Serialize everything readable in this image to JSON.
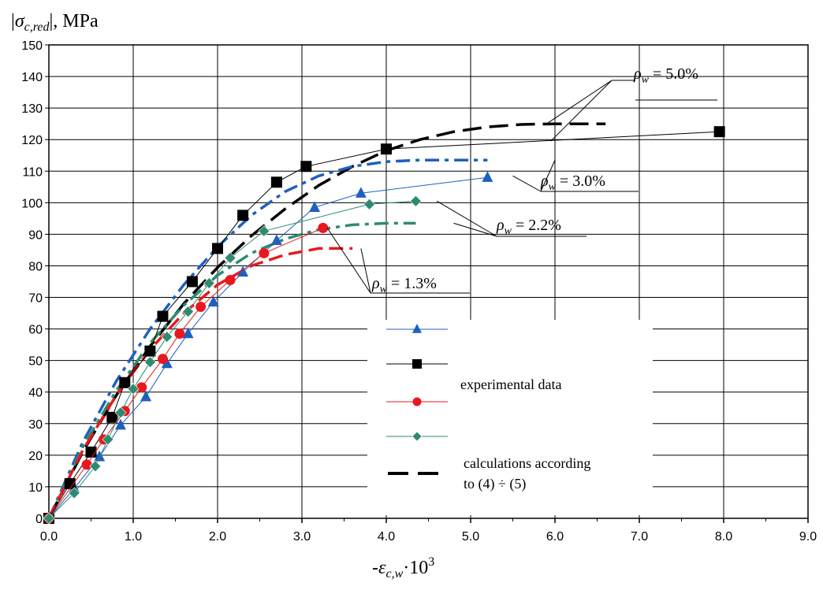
{
  "chart_data": {
    "type": "line",
    "ylabel_parts": [
      "|",
      "σ",
      "c,red",
      "|, MPa"
    ],
    "xlabel_parts": [
      "-",
      "ε",
      "c,w",
      "·10",
      "3"
    ],
    "xlim": [
      0,
      9
    ],
    "ylim": [
      0,
      150
    ],
    "x_ticks": [
      "0.0",
      "1.0",
      "2.0",
      "3.0",
      "4.0",
      "5.0",
      "6.0",
      "7.0",
      "8.0",
      "9.0"
    ],
    "y_ticks": [
      "0",
      "10",
      "20",
      "30",
      "40",
      "50",
      "60",
      "70",
      "80",
      "90",
      "100",
      "110",
      "120",
      "130",
      "140",
      "150"
    ],
    "grid": true,
    "colors": {
      "blue": "#1F5FBF",
      "black": "#000000",
      "red": "#E8191E",
      "green": "#2E8B6E"
    },
    "legend": {
      "experimental_label": "experimental data",
      "calc_label_line1": "calculations according",
      "calc_label_line2": "to (4) ÷ (5)"
    },
    "annotations": [
      {
        "rho": "ρ",
        "sub": "w",
        "text": " = 5.0%"
      },
      {
        "rho": "ρ",
        "sub": "w",
        "text": " = 3.0%"
      },
      {
        "rho": "ρ",
        "sub": "w",
        "text": " = 2.2%"
      },
      {
        "rho": "ρ",
        "sub": "w",
        "text": " = 1.3%"
      }
    ],
    "series": [
      {
        "color": "blue",
        "marker": "triangle",
        "x": [
          0,
          0.3,
          0.6,
          0.85,
          1.15,
          1.4,
          1.65,
          1.95,
          2.3,
          2.7,
          3.15,
          3.7,
          5.2
        ],
        "y": [
          0,
          9.5,
          19.5,
          29.5,
          38.5,
          49,
          58.5,
          68.5,
          78,
          88,
          98.5,
          103,
          108
        ]
      },
      {
        "color": "black",
        "marker": "square",
        "x": [
          0,
          0.25,
          0.5,
          0.75,
          0.9,
          1.2,
          1.35,
          1.7,
          2.0,
          2.3,
          2.7,
          3.05,
          4.0,
          7.95
        ],
        "y": [
          0,
          11,
          21,
          32,
          43,
          53,
          64,
          75,
          85.5,
          96,
          106.5,
          111.5,
          117,
          122.5
        ]
      },
      {
        "color": "red",
        "marker": "circle",
        "x": [
          0,
          0.45,
          0.65,
          0.9,
          1.1,
          1.35,
          1.55,
          1.8,
          2.15,
          2.55,
          3.25
        ],
        "y": [
          0,
          17,
          25,
          34,
          41.5,
          50.5,
          58.5,
          67,
          75.5,
          84,
          92
        ]
      },
      {
        "color": "green",
        "marker": "diamond",
        "x": [
          0,
          0.3,
          0.55,
          0.7,
          0.85,
          1.0,
          1.2,
          1.4,
          1.65,
          1.9,
          2.15,
          2.55,
          3.8,
          4.35
        ],
        "y": [
          0,
          8,
          16.5,
          25,
          33.5,
          41,
          49.5,
          57.5,
          65.5,
          74.5,
          82.5,
          91,
          99.5,
          100.5
        ]
      }
    ],
    "calculations": [
      {
        "color": "black",
        "x": [
          0,
          0.4,
          0.8,
          1.2,
          1.6,
          2.0,
          2.4,
          2.8,
          3.2,
          3.6,
          4.0,
          4.4,
          4.8,
          5.2,
          5.6,
          6.0,
          6.6
        ],
        "y": [
          0,
          21,
          39,
          54.5,
          68,
          79.5,
          89.5,
          98,
          105.5,
          111.5,
          116.5,
          120,
          122.5,
          124,
          124.8,
          125,
          125
        ]
      },
      {
        "color": "blue",
        "x": [
          0,
          0.4,
          0.8,
          1.2,
          1.6,
          2.0,
          2.4,
          2.8,
          3.2,
          3.6,
          4.0,
          4.4,
          4.8,
          5.2
        ],
        "y": [
          0,
          24,
          43.5,
          60,
          74,
          86,
          96,
          103.5,
          108.5,
          111.5,
          113,
          113.5,
          113.5,
          113.5
        ]
      },
      {
        "color": "green",
        "x": [
          0,
          0.4,
          0.8,
          1.2,
          1.6,
          2.0,
          2.4,
          2.8,
          3.2,
          3.6,
          4.0,
          4.35
        ],
        "y": [
          0,
          22.5,
          40.5,
          55.5,
          67.5,
          77,
          84,
          88.5,
          91.5,
          93,
          93.5,
          93.5
        ]
      },
      {
        "color": "red",
        "x": [
          0,
          0.4,
          0.8,
          1.2,
          1.6,
          2.0,
          2.4,
          2.8,
          3.2,
          3.6
        ],
        "y": [
          0,
          21.5,
          39,
          53.5,
          65,
          74,
          80,
          83.5,
          85.5,
          85.5
        ]
      }
    ]
  }
}
